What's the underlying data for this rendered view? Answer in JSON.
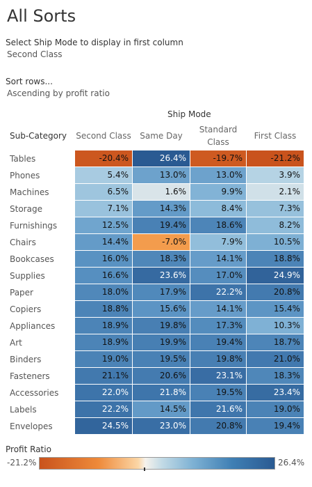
{
  "title": "All Sorts",
  "parameters": [
    {
      "label": "Select Ship Mode to display in first column",
      "value": "Second Class"
    },
    {
      "label": "Sort rows...",
      "value": "Ascending by profit ratio"
    }
  ],
  "legend": {
    "title": "Profit Ratio",
    "min_label": "-21.2%",
    "max_label": "26.4%"
  },
  "chart_data": {
    "type": "heatmap",
    "column_group_title": "Ship Mode",
    "row_header_title": "Sub-Category",
    "columns": [
      "Second Class",
      "Same Day",
      "Standard Class",
      "First Class"
    ],
    "rows": [
      "Tables",
      "Phones",
      "Machines",
      "Storage",
      "Furnishings",
      "Chairs",
      "Bookcases",
      "Supplies",
      "Paper",
      "Copiers",
      "Appliances",
      "Art",
      "Binders",
      "Fasteners",
      "Accessories",
      "Labels",
      "Envelopes"
    ],
    "values": [
      [
        -20.4,
        26.4,
        -19.7,
        -21.2
      ],
      [
        5.4,
        13.0,
        13.0,
        3.9
      ],
      [
        6.5,
        1.6,
        9.9,
        2.1
      ],
      [
        7.1,
        14.3,
        8.4,
        7.3
      ],
      [
        12.5,
        19.4,
        18.6,
        8.2
      ],
      [
        14.4,
        -7.0,
        7.9,
        10.5
      ],
      [
        16.0,
        18.3,
        14.1,
        18.8
      ],
      [
        16.6,
        23.6,
        17.0,
        24.9
      ],
      [
        18.0,
        17.9,
        22.2,
        20.8
      ],
      [
        18.8,
        15.6,
        14.1,
        15.4
      ],
      [
        18.9,
        19.8,
        17.3,
        10.3
      ],
      [
        18.9,
        19.9,
        19.4,
        18.7
      ],
      [
        19.0,
        19.5,
        19.8,
        21.0
      ],
      [
        21.1,
        20.6,
        23.1,
        18.3
      ],
      [
        22.0,
        21.8,
        19.5,
        23.4
      ],
      [
        22.2,
        14.5,
        21.6,
        19.0
      ],
      [
        24.5,
        23.0,
        20.8,
        19.4
      ]
    ],
    "value_suffix": "%",
    "color_range": [
      -21.2,
      26.4
    ],
    "colors": {
      "negative": "#c9531d",
      "mid": "#f6f2ec",
      "positive": "#2a5a92"
    }
  }
}
